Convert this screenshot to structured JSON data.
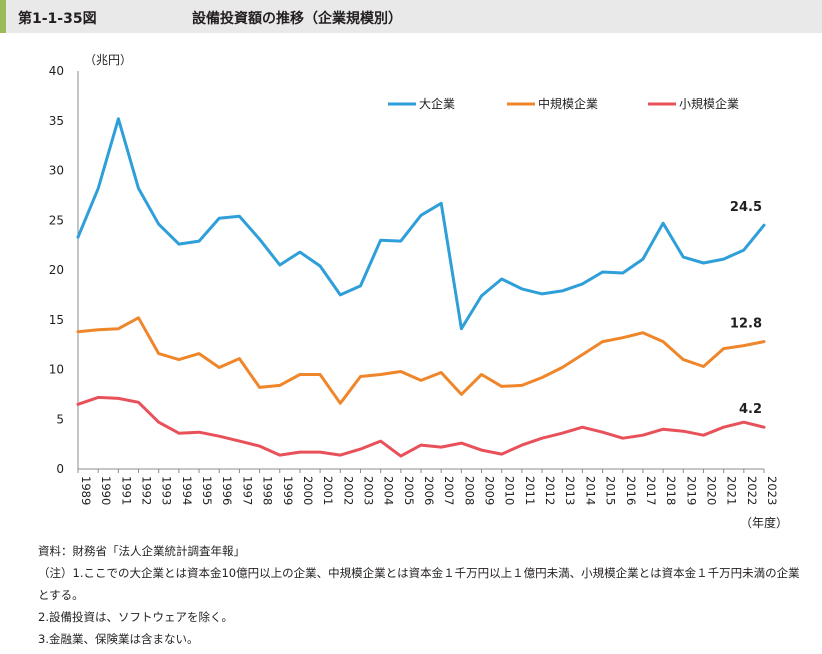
{
  "header": {
    "figure_label": "第1-1-35図",
    "title": "設備投資額の推移（企業規模別）"
  },
  "chart_data": {
    "type": "line",
    "ylabel": "（兆円）",
    "xlabel": "（年度）",
    "ylim": [
      0,
      40
    ],
    "yticks": [
      0,
      5,
      10,
      15,
      20,
      25,
      30,
      35,
      40
    ],
    "grid": false,
    "legend_position": "top-right",
    "x": [
      "1989",
      "1990",
      "1991",
      "1992",
      "1993",
      "1994",
      "1995",
      "1996",
      "1997",
      "1998",
      "1999",
      "2000",
      "2001",
      "2002",
      "2003",
      "2004",
      "2005",
      "2006",
      "2007",
      "2008",
      "2009",
      "2010",
      "2011",
      "2012",
      "2013",
      "2014",
      "2015",
      "2016",
      "2017",
      "2018",
      "2019",
      "2020",
      "2021",
      "2022",
      "2023"
    ],
    "series": [
      {
        "name": "大企業",
        "color": "#2e9fd8",
        "end_label": "24.5",
        "values": [
          23.3,
          28.2,
          35.2,
          28.2,
          24.6,
          22.6,
          22.9,
          25.2,
          25.4,
          23.1,
          20.5,
          21.8,
          20.4,
          17.5,
          18.4,
          23.0,
          22.9,
          25.5,
          26.7,
          14.1,
          17.4,
          19.1,
          18.1,
          17.6,
          17.9,
          18.6,
          19.8,
          19.7,
          21.1,
          24.7,
          21.3,
          20.7,
          21.1,
          22.0,
          24.5
        ]
      },
      {
        "name": "中規模企業",
        "color": "#f0862a",
        "end_label": "12.8",
        "values": [
          13.8,
          14.0,
          14.1,
          15.2,
          11.6,
          11.0,
          11.6,
          10.2,
          11.1,
          8.2,
          8.4,
          9.5,
          9.5,
          6.6,
          9.3,
          9.5,
          9.8,
          8.9,
          9.7,
          7.5,
          9.5,
          8.3,
          8.4,
          9.2,
          10.2,
          11.5,
          12.8,
          13.2,
          13.7,
          12.8,
          11.0,
          10.3,
          12.1,
          12.4,
          12.8
        ]
      },
      {
        "name": "小規模企業",
        "color": "#e8515a",
        "end_label": "4.2",
        "values": [
          6.5,
          7.2,
          7.1,
          6.7,
          4.7,
          3.6,
          3.7,
          3.3,
          2.8,
          2.3,
          1.4,
          1.7,
          1.7,
          1.4,
          2.0,
          2.8,
          1.3,
          2.4,
          2.2,
          2.6,
          1.9,
          1.5,
          2.4,
          3.1,
          3.6,
          4.2,
          3.7,
          3.1,
          3.4,
          4.0,
          3.8,
          3.4,
          4.2,
          4.7,
          4.2
        ]
      }
    ]
  },
  "notes": {
    "source": "資料：財務省「法人企業統計調査年報」",
    "note1": "（注）1.ここでの大企業とは資本金10億円以上の企業、中規模企業とは資本金１千万円以上１億円未満、小規模企業とは資本金１千万円未満の企業とする。",
    "note2": "2.設備投資は、ソフトウェアを除く。",
    "note3": "3.金融業、保険業は含まない。"
  }
}
